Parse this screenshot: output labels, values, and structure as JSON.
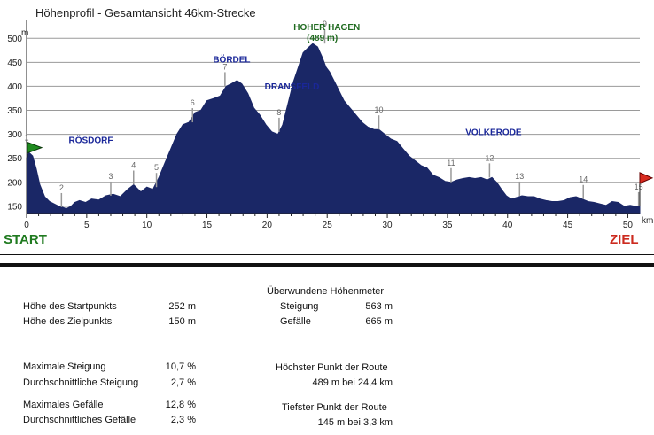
{
  "chart_data": {
    "type": "area",
    "title": "Höhenprofil - Gesamtansicht  46km-Strecke",
    "ylabel": "m",
    "xlabel": "km",
    "xlim": [
      0,
      51
    ],
    "ylim": [
      135,
      530
    ],
    "yticks": [
      150,
      200,
      250,
      300,
      350,
      400,
      450,
      500
    ],
    "xticks": [
      0,
      5,
      10,
      15,
      20,
      25,
      30,
      35,
      40,
      45,
      50
    ],
    "grid": true,
    "fill_color": "#1a2766",
    "start_label": "START",
    "finish_label": "ZIEL",
    "series": [
      {
        "x": [
          0,
          0.2,
          0.5,
          0.8,
          1.1,
          1.5,
          1.9,
          2.3,
          2.7,
          3.0,
          3.3,
          3.7,
          4.0,
          4.4,
          4.9,
          5.4,
          6.0,
          6.6,
          7.2,
          7.8,
          8.4,
          8.9,
          9.5,
          10.0,
          10.5,
          11.0,
          11.5,
          12.0,
          12.5,
          13.0,
          13.5,
          14.0,
          14.5,
          15.0,
          15.6,
          16.1,
          16.6,
          17.0,
          17.5,
          17.9,
          18.4,
          18.9,
          19.4,
          19.9,
          20.4,
          20.9,
          21.3,
          21.8,
          22.2,
          22.6,
          23.0,
          23.4,
          23.8,
          24.2,
          24.6,
          24.9,
          25.2,
          25.6,
          26.0,
          26.4,
          26.9,
          27.4,
          27.9,
          28.4,
          28.9,
          29.3,
          29.8,
          30.3,
          30.8,
          31.3,
          31.8,
          32.3,
          32.8,
          33.3,
          33.8,
          34.3,
          34.8,
          35.3,
          35.8,
          36.3,
          36.8,
          37.3,
          37.8,
          38.3,
          38.7,
          39.1,
          39.5,
          39.9,
          40.3,
          40.7,
          41.2,
          41.7,
          42.2,
          42.7,
          43.2,
          43.7,
          44.2,
          44.7,
          45.2,
          45.7,
          46.2,
          46.7,
          47.2,
          47.7,
          48.2,
          48.7,
          49.2,
          49.7,
          50.2,
          50.6,
          51.0
        ],
        "y": [
          252,
          262,
          255,
          228,
          195,
          170,
          160,
          155,
          150,
          148,
          145,
          150,
          158,
          162,
          158,
          165,
          163,
          172,
          175,
          170,
          185,
          195,
          180,
          190,
          185,
          210,
          240,
          270,
          300,
          320,
          325,
          345,
          350,
          370,
          375,
          380,
          400,
          405,
          412,
          405,
          385,
          355,
          340,
          320,
          305,
          300,
          320,
          370,
          410,
          440,
          470,
          480,
          489,
          482,
          460,
          440,
          430,
          410,
          390,
          370,
          355,
          340,
          325,
          315,
          310,
          310,
          300,
          290,
          285,
          270,
          255,
          245,
          235,
          230,
          215,
          210,
          202,
          200,
          205,
          208,
          210,
          208,
          210,
          205,
          210,
          200,
          185,
          172,
          165,
          168,
          172,
          170,
          170,
          165,
          162,
          160,
          160,
          162,
          168,
          170,
          165,
          160,
          158,
          155,
          152,
          160,
          158,
          150,
          152,
          150,
          150
        ],
        "color": "#1a2766"
      }
    ],
    "annotations": {
      "places": [
        {
          "text": "RÖSDORF",
          "x": 3.5,
          "y": 282,
          "color": "#1a2799"
        },
        {
          "text": "BÖRDEL",
          "x": 15.5,
          "y": 450,
          "color": "#1a2799"
        },
        {
          "text": "DRANSFELD",
          "x": 19.8,
          "y": 393,
          "color": "#1a2799"
        },
        {
          "text": "HOHER HAGEN",
          "x": 22.2,
          "y": 517,
          "color": "#1f6a1f"
        },
        {
          "text": "(489 m)",
          "x": 23.3,
          "y": 495,
          "color": "#1f6a1f"
        },
        {
          "text": "VOLKERODE",
          "x": 36.5,
          "y": 298,
          "color": "#1a2799"
        }
      ],
      "markers": [
        {
          "label": "1",
          "x": 0.0,
          "y": 252
        },
        {
          "label": "2",
          "x": 2.9,
          "y": 148
        },
        {
          "label": "3",
          "x": 7.0,
          "y": 172
        },
        {
          "label": "4",
          "x": 8.9,
          "y": 195
        },
        {
          "label": "5",
          "x": 10.8,
          "y": 190
        },
        {
          "label": "6",
          "x": 13.8,
          "y": 325
        },
        {
          "label": "7",
          "x": 16.5,
          "y": 400
        },
        {
          "label": "8",
          "x": 21.0,
          "y": 305
        },
        {
          "label": "9",
          "x": 24.8,
          "y": 489
        },
        {
          "label": "10",
          "x": 29.3,
          "y": 310
        },
        {
          "label": "11",
          "x": 35.3,
          "y": 200
        },
        {
          "label": "12",
          "x": 38.5,
          "y": 210
        },
        {
          "label": "13",
          "x": 41.0,
          "y": 172
        },
        {
          "label": "14",
          "x": 46.3,
          "y": 165
        },
        {
          "label": "15",
          "x": 50.9,
          "y": 150
        }
      ]
    }
  },
  "stats": {
    "start_height_label": "Höhe des Startpunkts",
    "start_height_value": "252 m",
    "end_height_label": "Höhe des Zielpunkts",
    "end_height_value": "150 m",
    "max_climb_label": "Maximale Steigung",
    "max_climb_value": "10,7 %",
    "avg_climb_label": "Durchschnittliche Steigung",
    "avg_climb_value": "2,7 %",
    "max_descent_label": "Maximales Gefälle",
    "max_descent_value": "12,8 %",
    "avg_descent_label": "Durchschnittliches Gefälle",
    "avg_descent_value": "2,3 %",
    "elevation_title": "Überwundene Höhenmeter",
    "ascent_label": "Steigung",
    "ascent_value": "563 m",
    "descent_label": "Gefälle",
    "descent_value": "665 m",
    "highest_title": "Höchster Punkt der Route",
    "highest_value": "489 m bei 24,4 km",
    "lowest_title": "Tiefster Punkt der Route",
    "lowest_value": "145 m bei 3,3 km"
  }
}
